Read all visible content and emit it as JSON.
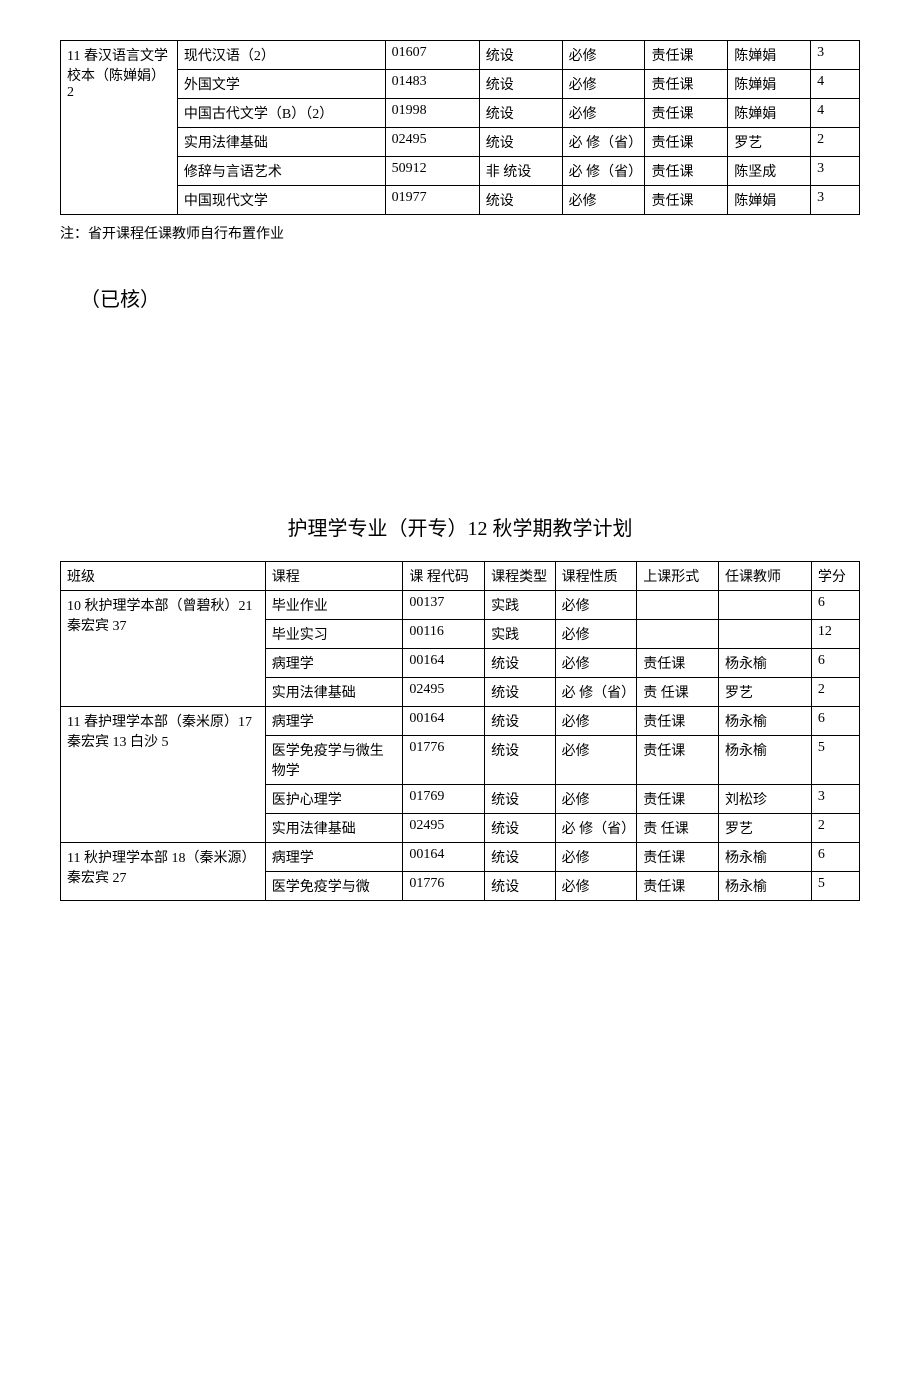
{
  "table1": {
    "class_label": "11 春汉语言文学 校本（陈婵娟）2",
    "rows": [
      {
        "course": "现代汉语（2）",
        "code": "01607",
        "type": "统设",
        "nature": "必修",
        "form": "责任课",
        "teacher": "陈婵娟",
        "credit": "3"
      },
      {
        "course": "外国文学",
        "code": "01483",
        "type": "统设",
        "nature": "必修",
        "form": "责任课",
        "teacher": "陈婵娟",
        "credit": "4"
      },
      {
        "course": "中国古代文学（B）（2）",
        "code": "01998",
        "type": "统设",
        "nature": "必修",
        "form": "责任课",
        "teacher": "陈婵娟",
        "credit": "4"
      },
      {
        "course": "实用法律基础",
        "code": "02495",
        "type": "统设",
        "nature": "必 修（省）",
        "form": "责任课",
        "teacher": "罗艺",
        "credit": "2"
      },
      {
        "course": "修辞与言语艺术",
        "code": "50912",
        "type": "非 统设",
        "nature": "必 修（省）",
        "form": "责任课",
        "teacher": "陈坚成",
        "credit": "3"
      },
      {
        "course": "中国现代文学",
        "code": "01977",
        "type": "统设",
        "nature": "必修",
        "form": "责任课",
        "teacher": "陈婵娟",
        "credit": "3"
      }
    ]
  },
  "note": "注：省开课程任课教师自行布置作业",
  "checked": "（已核）",
  "title2": "护理学专业（开专）12 秋学期教学计划",
  "table2": {
    "headers": {
      "class": "班级",
      "course": "课程",
      "code": "课 程代码",
      "type": "课程类型",
      "nature": "课程性质",
      "form": "上课形式",
      "teacher": "任课教师",
      "credit": "学分"
    },
    "groups": [
      {
        "class_label": "10 秋护理学本部（曾碧秋）21 秦宏宾 37",
        "rows": [
          {
            "course": "毕业作业",
            "code": "00137",
            "type": "实践",
            "nature": "必修",
            "form": "",
            "teacher": "",
            "credit": "6"
          },
          {
            "course": "毕业实习",
            "code": "00116",
            "type": "实践",
            "nature": "必修",
            "form": "",
            "teacher": "",
            "credit": "12"
          },
          {
            "course": "病理学",
            "code": "00164",
            "type": "统设",
            "nature": "必修",
            "form": "责任课",
            "teacher": "杨永榆",
            "credit": "6"
          },
          {
            "course": "实用法律基础",
            "code": "02495",
            "type": "统设",
            "nature": "必 修（省）",
            "form": "责 任课",
            "teacher": "罗艺",
            "credit": "2"
          }
        ]
      },
      {
        "class_label": "11 春护理学本部（秦米原）17\n秦宏宾 13 白沙 5",
        "rows": [
          {
            "course": "病理学",
            "code": "00164",
            "type": "统设",
            "nature": "必修",
            "form": "责任课",
            "teacher": "杨永榆",
            "credit": "6"
          },
          {
            "course": "医学免疫学与微生物学",
            "code": "01776",
            "type": "统设",
            "nature": "必修",
            "form": "责任课",
            "teacher": "杨永榆",
            "credit": "5"
          },
          {
            "course": "医护心理学",
            "code": "01769",
            "type": "统设",
            "nature": "必修",
            "form": "责任课",
            "teacher": "刘松珍",
            "credit": "3"
          },
          {
            "course": "实用法律基础",
            "code": "02495",
            "type": "统设",
            "nature": "必 修（省）",
            "form": "责 任课",
            "teacher": "罗艺",
            "credit": "2"
          }
        ]
      },
      {
        "class_label": "11 秋护理学本部 18（秦米源）秦宏宾 27",
        "rows": [
          {
            "course": "病理学",
            "code": "00164",
            "type": "统设",
            "nature": "必修",
            "form": "责任课",
            "teacher": "杨永榆",
            "credit": "6"
          },
          {
            "course": "医学免疫学与微",
            "code": "01776",
            "type": "统设",
            "nature": "必修",
            "form": "责任课",
            "teacher": "杨永榆",
            "credit": "5"
          }
        ]
      }
    ]
  }
}
